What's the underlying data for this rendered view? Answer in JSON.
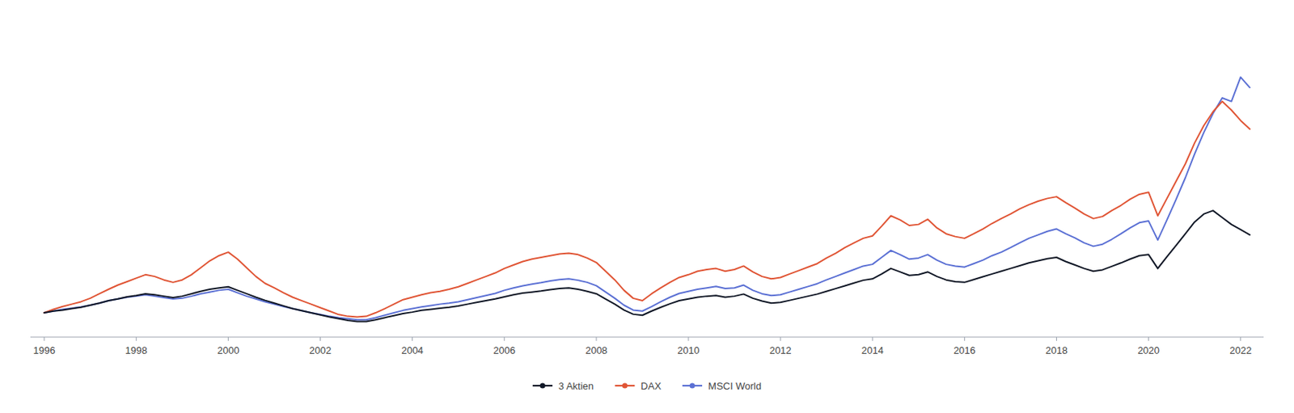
{
  "chart_data": {
    "type": "line",
    "x": [
      1996.0,
      1996.2,
      1996.4,
      1996.6,
      1996.8,
      1997.0,
      1997.2,
      1997.4,
      1997.6,
      1997.8,
      1998.0,
      1998.2,
      1998.4,
      1998.6,
      1998.8,
      1999.0,
      1999.2,
      1999.4,
      1999.6,
      1999.8,
      2000.0,
      2000.2,
      2000.4,
      2000.6,
      2000.8,
      2001.0,
      2001.2,
      2001.4,
      2001.6,
      2001.8,
      2002.0,
      2002.2,
      2002.4,
      2002.6,
      2002.8,
      2003.0,
      2003.2,
      2003.4,
      2003.6,
      2003.8,
      2004.0,
      2004.2,
      2004.4,
      2004.6,
      2004.8,
      2005.0,
      2005.2,
      2005.4,
      2005.6,
      2005.8,
      2006.0,
      2006.2,
      2006.4,
      2006.6,
      2006.8,
      2007.0,
      2007.2,
      2007.4,
      2007.6,
      2007.8,
      2008.0,
      2008.2,
      2008.4,
      2008.6,
      2008.8,
      2009.0,
      2009.2,
      2009.4,
      2009.6,
      2009.8,
      2010.0,
      2010.2,
      2010.4,
      2010.6,
      2010.8,
      2011.0,
      2011.2,
      2011.4,
      2011.6,
      2011.8,
      2012.0,
      2012.2,
      2012.4,
      2012.6,
      2012.8,
      2013.0,
      2013.2,
      2013.4,
      2013.6,
      2013.8,
      2014.0,
      2014.2,
      2014.4,
      2014.6,
      2014.8,
      2015.0,
      2015.2,
      2015.4,
      2015.6,
      2015.8,
      2016.0,
      2016.2,
      2016.4,
      2016.6,
      2016.8,
      2017.0,
      2017.2,
      2017.4,
      2017.6,
      2017.8,
      2018.0,
      2018.2,
      2018.4,
      2018.6,
      2018.8,
      2019.0,
      2019.2,
      2019.4,
      2019.6,
      2019.8,
      2020.0,
      2020.2,
      2020.4,
      2020.6,
      2020.8,
      2021.0,
      2021.2,
      2021.4,
      2021.6,
      2021.8,
      2022.0,
      2022.2
    ],
    "series": [
      {
        "name": "3 Aktien",
        "color": "#111827",
        "values": [
          1.0,
          1.05,
          1.08,
          1.12,
          1.16,
          1.22,
          1.28,
          1.35,
          1.4,
          1.46,
          1.5,
          1.55,
          1.52,
          1.48,
          1.44,
          1.48,
          1.55,
          1.62,
          1.68,
          1.72,
          1.75,
          1.65,
          1.55,
          1.45,
          1.36,
          1.28,
          1.2,
          1.12,
          1.06,
          1.0,
          0.94,
          0.88,
          0.83,
          0.78,
          0.75,
          0.75,
          0.8,
          0.86,
          0.92,
          0.98,
          1.02,
          1.07,
          1.1,
          1.13,
          1.16,
          1.2,
          1.25,
          1.3,
          1.35,
          1.4,
          1.46,
          1.52,
          1.57,
          1.6,
          1.63,
          1.67,
          1.7,
          1.72,
          1.68,
          1.62,
          1.55,
          1.4,
          1.25,
          1.08,
          0.96,
          0.93,
          1.05,
          1.16,
          1.26,
          1.35,
          1.4,
          1.45,
          1.48,
          1.5,
          1.45,
          1.48,
          1.54,
          1.42,
          1.34,
          1.28,
          1.3,
          1.36,
          1.42,
          1.48,
          1.54,
          1.62,
          1.7,
          1.78,
          1.86,
          1.94,
          1.98,
          2.12,
          2.28,
          2.18,
          2.08,
          2.1,
          2.18,
          2.05,
          1.95,
          1.9,
          1.88,
          1.96,
          2.04,
          2.12,
          2.2,
          2.28,
          2.36,
          2.44,
          2.5,
          2.56,
          2.6,
          2.48,
          2.38,
          2.28,
          2.2,
          2.24,
          2.34,
          2.44,
          2.55,
          2.65,
          2.68,
          2.28,
          2.62,
          2.95,
          3.28,
          3.62,
          3.85,
          3.95,
          3.75,
          3.55,
          3.4,
          3.25
        ]
      },
      {
        "name": "DAX",
        "color": "#e05535",
        "values": [
          1.0,
          1.1,
          1.18,
          1.25,
          1.32,
          1.42,
          1.55,
          1.68,
          1.8,
          1.9,
          2.0,
          2.1,
          2.05,
          1.95,
          1.88,
          1.95,
          2.1,
          2.3,
          2.5,
          2.65,
          2.75,
          2.55,
          2.3,
          2.05,
          1.85,
          1.72,
          1.58,
          1.45,
          1.35,
          1.25,
          1.15,
          1.05,
          0.95,
          0.9,
          0.88,
          0.9,
          1.0,
          1.12,
          1.25,
          1.38,
          1.45,
          1.52,
          1.58,
          1.62,
          1.68,
          1.75,
          1.85,
          1.95,
          2.05,
          2.15,
          2.28,
          2.38,
          2.48,
          2.55,
          2.6,
          2.65,
          2.7,
          2.72,
          2.68,
          2.58,
          2.45,
          2.2,
          1.95,
          1.65,
          1.42,
          1.35,
          1.55,
          1.72,
          1.88,
          2.02,
          2.1,
          2.2,
          2.25,
          2.28,
          2.2,
          2.25,
          2.35,
          2.18,
          2.05,
          1.98,
          2.02,
          2.12,
          2.22,
          2.32,
          2.42,
          2.58,
          2.72,
          2.88,
          3.02,
          3.15,
          3.22,
          3.5,
          3.8,
          3.68,
          3.52,
          3.55,
          3.7,
          3.45,
          3.28,
          3.2,
          3.15,
          3.28,
          3.42,
          3.58,
          3.72,
          3.85,
          4.0,
          4.12,
          4.22,
          4.3,
          4.35,
          4.18,
          4.02,
          3.85,
          3.72,
          3.78,
          3.95,
          4.1,
          4.28,
          4.42,
          4.48,
          3.8,
          4.3,
          4.8,
          5.3,
          5.9,
          6.4,
          6.8,
          7.1,
          6.85,
          6.55,
          6.3
        ]
      },
      {
        "name": "MSCI World",
        "color": "#5b70d4",
        "values": [
          1.0,
          1.05,
          1.1,
          1.13,
          1.17,
          1.22,
          1.28,
          1.35,
          1.4,
          1.45,
          1.48,
          1.52,
          1.48,
          1.44,
          1.4,
          1.42,
          1.48,
          1.55,
          1.6,
          1.65,
          1.68,
          1.58,
          1.48,
          1.4,
          1.32,
          1.25,
          1.18,
          1.12,
          1.06,
          1.0,
          0.95,
          0.9,
          0.86,
          0.83,
          0.8,
          0.8,
          0.86,
          0.93,
          1.0,
          1.07,
          1.12,
          1.17,
          1.21,
          1.25,
          1.28,
          1.32,
          1.38,
          1.44,
          1.5,
          1.56,
          1.65,
          1.72,
          1.78,
          1.83,
          1.87,
          1.92,
          1.96,
          1.98,
          1.94,
          1.88,
          1.78,
          1.6,
          1.42,
          1.22,
          1.08,
          1.05,
          1.18,
          1.32,
          1.45,
          1.56,
          1.62,
          1.68,
          1.72,
          1.76,
          1.7,
          1.72,
          1.8,
          1.65,
          1.55,
          1.5,
          1.52,
          1.6,
          1.68,
          1.76,
          1.84,
          1.95,
          2.05,
          2.15,
          2.25,
          2.35,
          2.4,
          2.6,
          2.8,
          2.68,
          2.55,
          2.58,
          2.68,
          2.52,
          2.4,
          2.35,
          2.32,
          2.42,
          2.52,
          2.65,
          2.75,
          2.88,
          3.02,
          3.15,
          3.25,
          3.35,
          3.42,
          3.28,
          3.16,
          3.02,
          2.92,
          2.98,
          3.12,
          3.28,
          3.45,
          3.6,
          3.65,
          3.1,
          3.68,
          4.28,
          4.9,
          5.58,
          6.2,
          6.75,
          7.2,
          7.1,
          7.8,
          7.5
        ]
      }
    ],
    "xlim": [
      1995.7,
      2022.5
    ],
    "xticks": [
      1996,
      1998,
      2000,
      2002,
      2004,
      2006,
      2008,
      2010,
      2012,
      2014,
      2016,
      2018,
      2020,
      2022
    ],
    "ylim": [
      0.3,
      9.5
    ],
    "tick_labels": "x",
    "grid": false,
    "legend": "bottom"
  }
}
